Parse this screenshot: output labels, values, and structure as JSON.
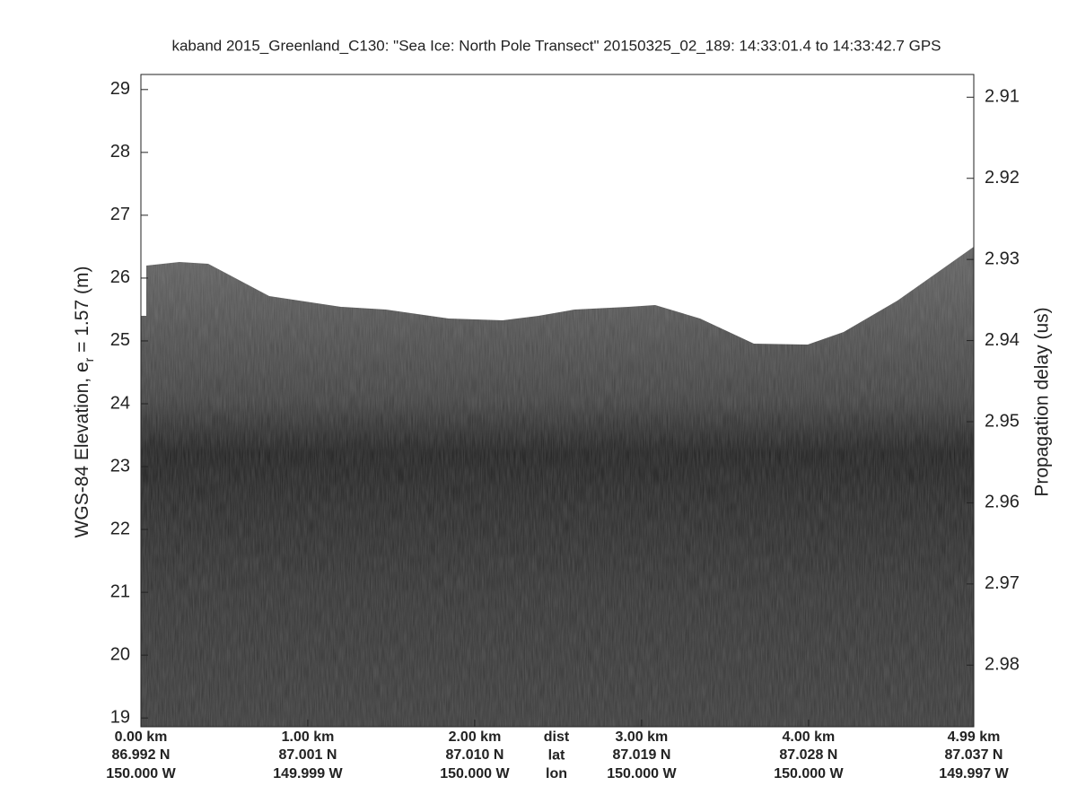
{
  "chart_data": {
    "type": "echogram",
    "title": "kaband 2015_Greenland_C130: \"Sea Ice: North Pole Transect\"  20150325_02_189: 14:33:01.4 to 14:33:42.7 GPS",
    "ylabel": {
      "text": "WGS-84 Elevation, e",
      "subscript": "r",
      "suffix": " = 1.57 (m)"
    },
    "y2label": "Propagation delay (us)",
    "ylim": [
      18.86,
      29.24
    ],
    "yticks": [
      19,
      20,
      21,
      22,
      23,
      24,
      25,
      26,
      27,
      28,
      29
    ],
    "y2lim": [
      2.9876,
      2.9072
    ],
    "y2ticks": [
      2.91,
      2.92,
      2.93,
      2.94,
      2.95,
      2.96,
      2.97,
      2.98
    ],
    "xlim": [
      0,
      4.99
    ],
    "xticks": [
      {
        "value": 0,
        "label": "0.00 km"
      },
      {
        "value": 1,
        "label": "1.00 km"
      },
      {
        "value": 2,
        "label": "2.00 km"
      },
      {
        "value": 3,
        "label": "3.00 km"
      },
      {
        "value": 4,
        "label": "4.00 km"
      },
      {
        "value": 4.99,
        "label": "4.99 km"
      }
    ],
    "lat_labels": [
      "86.992 N",
      "87.001 N",
      "87.010 N",
      "87.019 N",
      "87.028 N",
      "87.037 N"
    ],
    "lon_labels": [
      "150.000 W",
      "149.999 W",
      "150.000 W",
      "150.000 W",
      "150.000 W",
      "149.997 W"
    ],
    "row_names": [
      "dist",
      "lat",
      "lon"
    ]
  }
}
